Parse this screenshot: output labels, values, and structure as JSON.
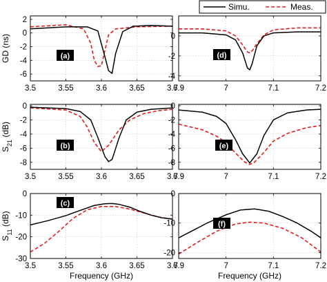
{
  "chart_data": {
    "type": "line",
    "legend": {
      "placement": "top-right",
      "items": [
        {
          "label": "Simu.",
          "color": "#000000",
          "dash": "solid"
        },
        {
          "label": "Meas.",
          "color": "#e41a1c",
          "dash": "dashed"
        }
      ]
    },
    "colors": {
      "simu": "#000000",
      "meas": "#e41a1c"
    },
    "xlabel": "Frequency (GHz)",
    "panels": [
      {
        "tag": "(a)",
        "row": 0,
        "col": 0,
        "ylabel": "GD (ns)",
        "xlim": [
          3.5,
          3.7
        ],
        "ylim": [
          -7,
          2.5
        ],
        "xticks": [
          "3.5",
          "3.55",
          "3.6",
          "3.65",
          "3.7"
        ],
        "xtick_values": [
          3.5,
          3.55,
          3.6,
          3.65,
          3.7
        ],
        "yticks": [
          "2",
          "0",
          "-2",
          "-4",
          "-6"
        ],
        "ytick_values": [
          2,
          0,
          -2,
          -4,
          -6
        ],
        "series": [
          {
            "name": "Simu.",
            "x": [
              3.5,
              3.55,
              3.58,
              3.595,
              3.605,
              3.61,
              3.615,
              3.62,
              3.63,
              3.645,
              3.67,
              3.7
            ],
            "y": [
              0.6,
              0.9,
              0.9,
              0.3,
              -3.5,
              -5.5,
              -5.9,
              -3.0,
              0.2,
              1.0,
              1.1,
              1.0
            ]
          },
          {
            "name": "Meas.",
            "x": [
              3.5,
              3.55,
              3.575,
              3.585,
              3.59,
              3.595,
              3.6,
              3.605,
              3.61,
              3.62,
              3.65,
              3.7
            ],
            "y": [
              0.9,
              1.2,
              0.6,
              -1.5,
              -4.0,
              -4.9,
              -4.8,
              -2.5,
              -0.3,
              0.6,
              0.9,
              1.0
            ]
          }
        ]
      },
      {
        "tag": "(d)",
        "row": 0,
        "col": 1,
        "ylabel": "",
        "xlim": [
          6.9,
          7.2
        ],
        "ylim": [
          -4.5,
          2
        ],
        "xticks": [
          "6.9",
          "7",
          "7.1",
          "7.2"
        ],
        "xtick_values": [
          6.9,
          7.0,
          7.1,
          7.2
        ],
        "yticks": [
          "0",
          "-2",
          "-4"
        ],
        "ytick_values": [
          0,
          -2,
          -4
        ],
        "series": [
          {
            "name": "Simu.",
            "x": [
              6.9,
              6.95,
              7.0,
              7.02,
              7.035,
              7.045,
              7.05,
              7.055,
              7.065,
              7.08,
              7.1,
              7.15,
              7.2
            ],
            "y": [
              0.3,
              0.3,
              0.1,
              -0.4,
              -1.7,
              -3.2,
              -3.4,
              -2.8,
              -1.0,
              0.0,
              0.3,
              0.4,
              0.4
            ]
          },
          {
            "name": "Meas.",
            "x": [
              6.9,
              6.95,
              7.0,
              7.02,
              7.035,
              7.045,
              7.05,
              7.055,
              7.065,
              7.08,
              7.1,
              7.15,
              7.2
            ],
            "y": [
              0.7,
              0.7,
              0.5,
              0.0,
              -0.9,
              -1.6,
              -1.7,
              -1.5,
              -0.8,
              0.1,
              0.6,
              0.8,
              0.8
            ]
          }
        ]
      },
      {
        "tag": "(b)",
        "row": 1,
        "col": 0,
        "ylabel": "S21 (dB)",
        "xlim": [
          3.5,
          3.7
        ],
        "ylim": [
          -9,
          0.2
        ],
        "xticks": [
          "3.5",
          "3.55",
          "3.6",
          "3.65",
          "3.7"
        ],
        "xtick_values": [
          3.5,
          3.55,
          3.6,
          3.65,
          3.7
        ],
        "yticks": [
          "0",
          "-2",
          "-4",
          "-6",
          "-8"
        ],
        "ytick_values": [
          0,
          -2,
          -4,
          -6,
          -8
        ],
        "series": [
          {
            "name": "Simu.",
            "x": [
              3.5,
              3.55,
              3.57,
              3.585,
              3.595,
              3.605,
              3.61,
              3.615,
              3.625,
              3.635,
              3.65,
              3.67,
              3.7
            ],
            "y": [
              -0.2,
              -0.4,
              -0.8,
              -2.0,
              -4.5,
              -7.2,
              -7.9,
              -7.6,
              -4.5,
              -2.0,
              -0.9,
              -0.5,
              -0.3
            ]
          },
          {
            "name": "Meas.",
            "x": [
              3.5,
              3.55,
              3.57,
              3.58,
              3.59,
              3.6,
              3.61,
              3.625,
              3.64,
              3.66,
              3.68,
              3.7
            ],
            "y": [
              -0.3,
              -0.6,
              -1.5,
              -3.0,
              -5.2,
              -6.5,
              -5.6,
              -3.4,
              -2.0,
              -1.1,
              -0.7,
              -0.5
            ]
          }
        ]
      },
      {
        "tag": "(e)",
        "row": 1,
        "col": 1,
        "ylabel": "",
        "xlim": [
          6.9,
          7.2
        ],
        "ylim": [
          -9,
          0.2
        ],
        "xticks": [
          "6.9",
          "7",
          "7.1",
          "7.2"
        ],
        "xtick_values": [
          6.9,
          7.0,
          7.1,
          7.2
        ],
        "yticks": [
          "0",
          "-2",
          "-4",
          "-6",
          "-8"
        ],
        "ytick_values": [
          0,
          -2,
          -4,
          -6,
          -8
        ],
        "series": [
          {
            "name": "Simu.",
            "x": [
              6.9,
              6.95,
              6.98,
              7.0,
              7.02,
              7.035,
              7.05,
              7.065,
              7.08,
              7.1,
              7.13,
              7.17,
              7.2
            ],
            "y": [
              -0.6,
              -0.9,
              -1.5,
              -2.5,
              -4.8,
              -6.8,
              -8.1,
              -6.8,
              -4.2,
              -2.0,
              -1.0,
              -0.6,
              -0.5
            ]
          },
          {
            "name": "Meas.",
            "x": [
              6.9,
              6.95,
              6.98,
              7.0,
              7.02,
              7.04,
              7.05,
              7.06,
              7.08,
              7.1,
              7.13,
              7.17,
              7.2
            ],
            "y": [
              -2.6,
              -3.4,
              -4.3,
              -5.2,
              -6.7,
              -8.0,
              -8.3,
              -8.0,
              -6.6,
              -5.0,
              -3.9,
              -3.1,
              -2.8
            ]
          }
        ]
      },
      {
        "tag": "(c)",
        "row": 2,
        "col": 0,
        "ylabel": "S11 (dB)",
        "xlim": [
          3.5,
          3.7
        ],
        "ylim": [
          -30,
          0
        ],
        "xticks": [
          "3.5",
          "3.55",
          "3.6",
          "3.65",
          "3.7"
        ],
        "xtick_values": [
          3.5,
          3.55,
          3.6,
          3.65,
          3.7
        ],
        "yticks": [
          "0",
          "-10",
          "-20",
          "-30"
        ],
        "ytick_values": [
          0,
          -10,
          -20,
          -30
        ],
        "series": [
          {
            "name": "Simu.",
            "x": [
              3.5,
              3.525,
              3.55,
              3.57,
              3.59,
              3.605,
              3.615,
              3.625,
              3.64,
              3.655,
              3.67,
              3.685,
              3.7
            ],
            "y": [
              -14.5,
              -12.5,
              -10.2,
              -7.8,
              -5.5,
              -4.7,
              -4.6,
              -5.0,
              -6.3,
              -8.3,
              -10.0,
              -11.2,
              -11.8
            ]
          },
          {
            "name": "Meas.",
            "x": [
              3.5,
              3.52,
              3.54,
              3.56,
              3.58,
              3.6,
              3.62,
              3.64,
              3.66,
              3.68,
              3.7
            ],
            "y": [
              -27.0,
              -23.0,
              -17.5,
              -11.5,
              -7.5,
              -6.0,
              -6.0,
              -7.2,
              -9.0,
              -10.8,
              -11.8
            ]
          }
        ]
      },
      {
        "tag": "(f)",
        "row": 2,
        "col": 1,
        "ylabel": "",
        "xlim": [
          6.9,
          7.2
        ],
        "ylim": [
          -22,
          0
        ],
        "xticks": [
          "6.9",
          "7",
          "7.1",
          "7.2"
        ],
        "xtick_values": [
          6.9,
          7.0,
          7.1,
          7.2
        ],
        "yticks": [
          "0",
          "-10",
          "-20"
        ],
        "ytick_values": [
          0,
          -10,
          -20
        ],
        "series": [
          {
            "name": "Simu.",
            "x": [
              6.9,
              6.93,
              6.96,
              7.0,
              7.03,
              7.06,
              7.09,
              7.12,
              7.15,
              7.18,
              7.2
            ],
            "y": [
              -15.0,
              -12.5,
              -10.0,
              -7.2,
              -5.6,
              -5.2,
              -6.0,
              -7.8,
              -10.0,
              -12.8,
              -15.0
            ]
          },
          {
            "name": "Meas.",
            "x": [
              6.9,
              6.94,
              6.98,
              7.02,
              7.05,
              7.08,
              7.12,
              7.16,
              7.2
            ],
            "y": [
              -20.5,
              -16.5,
              -12.8,
              -10.3,
              -9.7,
              -10.0,
              -11.8,
              -15.0,
              -19.8
            ]
          }
        ]
      }
    ]
  }
}
